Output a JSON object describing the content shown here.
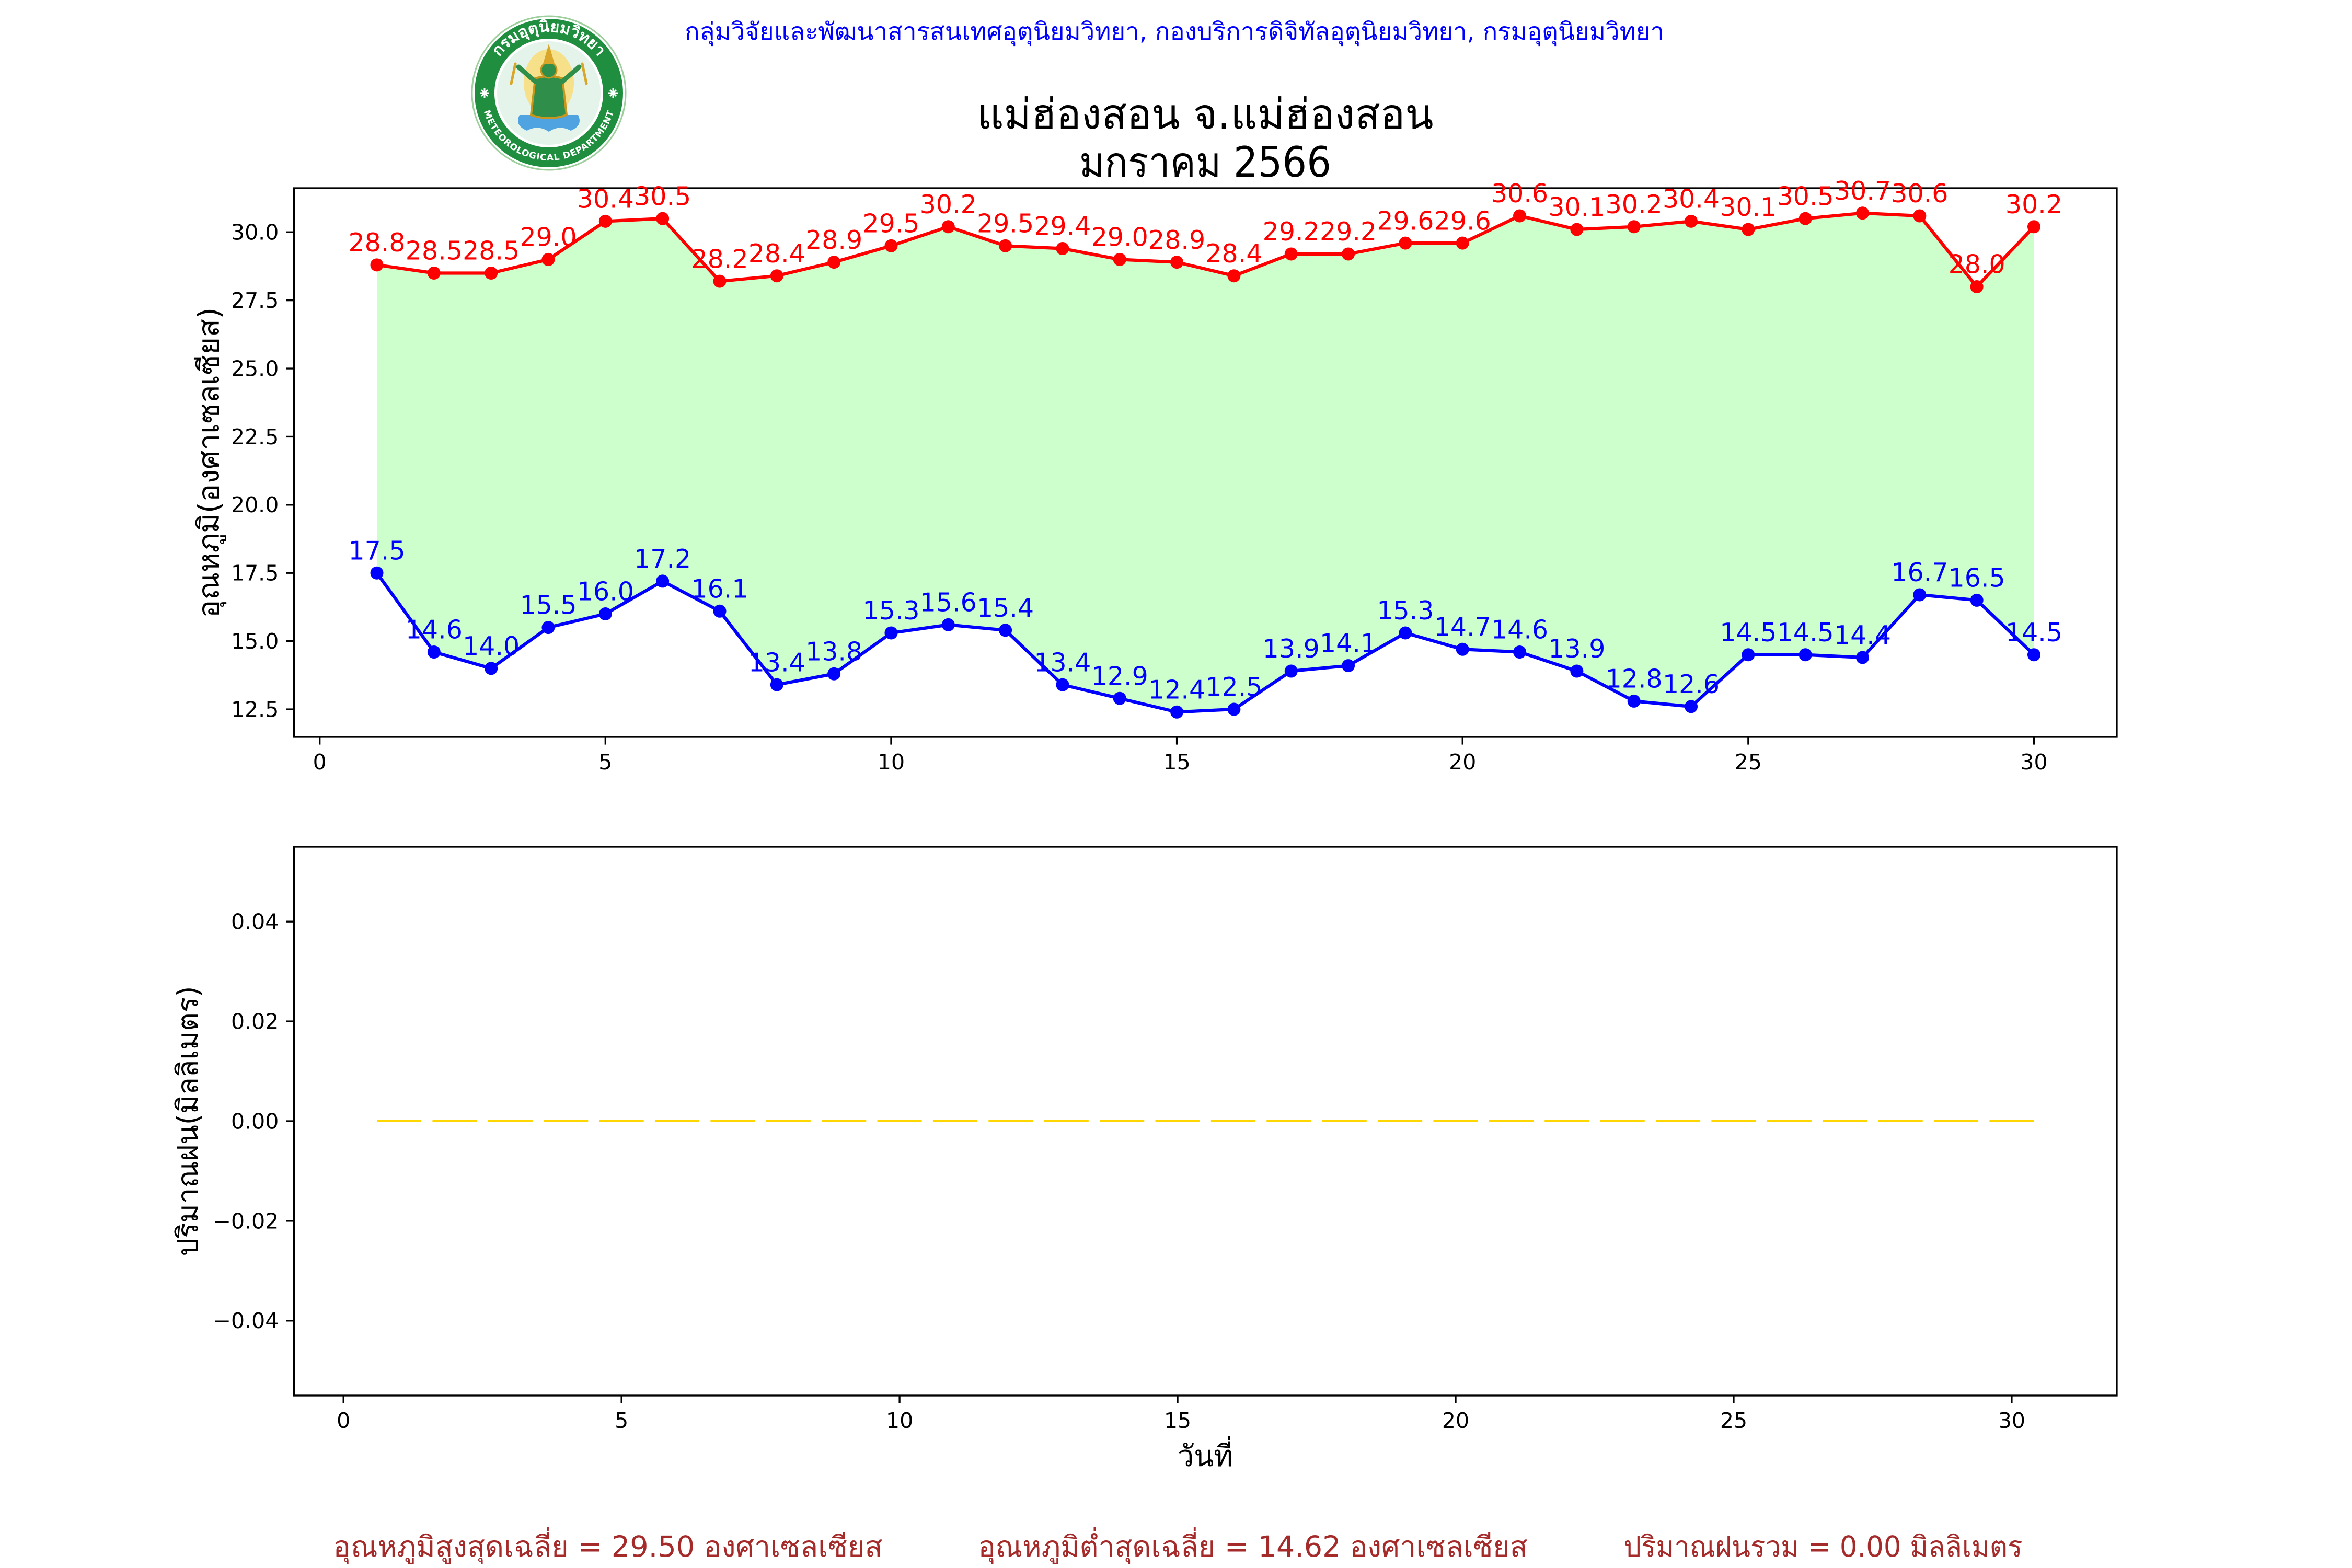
{
  "header": {
    "credit": "กลุ่มวิจัยและพัฒนาสารสนเทศอุตุนิยมวิทยา, กองบริการดิจิทัลอุตุนิยมวิทยา, กรมอุตุนิยมวิทยา",
    "color": "#0000ff"
  },
  "logo": {
    "text_thai": "กรมอุตุนิยมวิทยา",
    "text_english": "METEOROLOGICAL DEPARTMENT"
  },
  "chart_data": [
    {
      "type": "line",
      "title": "แม่ฮ่องสอน จ.แม่ฮ่องสอน",
      "subtitle": "มกราคม 2566",
      "ylabel": "อุณหภูมิ(องศาเซลเซียส)",
      "x": [
        1,
        2,
        3,
        4,
        5,
        6,
        7,
        8,
        9,
        10,
        11,
        12,
        13,
        14,
        15,
        16,
        17,
        18,
        19,
        20,
        21,
        22,
        23,
        24,
        25,
        26,
        27,
        28,
        29,
        30
      ],
      "series": [
        {
          "values": [
            28.8,
            28.5,
            28.5,
            29.0,
            30.4,
            30.5,
            28.2,
            28.4,
            28.9,
            29.5,
            30.2,
            29.5,
            29.4,
            29.0,
            28.9,
            28.4,
            29.2,
            29.2,
            29.6,
            29.6,
            30.6,
            30.1,
            30.2,
            30.4,
            30.1,
            30.5,
            30.7,
            30.6,
            28.0,
            30.2
          ],
          "color": "#ff0000",
          "marker": "circle",
          "data_labels": true
        },
        {
          "values": [
            17.5,
            14.6,
            14.0,
            15.5,
            16.0,
            17.2,
            16.1,
            13.4,
            13.8,
            15.3,
            15.6,
            15.4,
            13.4,
            12.9,
            12.4,
            12.5,
            13.9,
            14.1,
            15.3,
            14.7,
            14.6,
            13.9,
            12.8,
            12.6,
            14.5,
            14.5,
            14.4,
            16.7,
            16.5,
            14.5
          ],
          "color": "#0000ff",
          "marker": "circle",
          "data_labels": true
        }
      ],
      "fill_between_color": "#ccffcc",
      "xlim": [
        -0.45,
        31.45
      ],
      "ylim": [
        11.485,
        31.615
      ],
      "xticks": [
        0,
        5,
        10,
        15,
        20,
        25,
        30
      ],
      "xtick_labels": [
        "0",
        "5",
        "10",
        "15",
        "20",
        "25",
        "30"
      ],
      "yticks": [
        12.5,
        15.0,
        17.5,
        20.0,
        22.5,
        25.0,
        27.5,
        30.0
      ],
      "ytick_labels": [
        "12.5",
        "15.0",
        "17.5",
        "20.0",
        "22.5",
        "25.0",
        "27.5",
        "30.0"
      ],
      "grid": false,
      "legend": false
    },
    {
      "type": "bar",
      "xlabel": "วันที่",
      "ylabel": "ปริมาณฝน(มิลลิเมตร)",
      "x": [
        1,
        2,
        3,
        4,
        5,
        6,
        7,
        8,
        9,
        10,
        11,
        12,
        13,
        14,
        15,
        16,
        17,
        18,
        19,
        20,
        21,
        22,
        23,
        24,
        25,
        26,
        27,
        28,
        29,
        30
      ],
      "values": [
        0,
        0,
        0,
        0,
        0,
        0,
        0,
        0,
        0,
        0,
        0,
        0,
        0,
        0,
        0,
        0,
        0,
        0,
        0,
        0,
        0,
        0,
        0,
        0,
        0,
        0,
        0,
        0,
        0,
        0
      ],
      "color": "#ffd700",
      "xlim": [
        -0.89,
        31.89
      ],
      "ylim": [
        -0.055,
        0.055
      ],
      "xticks": [
        0,
        5,
        10,
        15,
        20,
        25,
        30
      ],
      "xtick_labels": [
        "0",
        "5",
        "10",
        "15",
        "20",
        "25",
        "30"
      ],
      "yticks": [
        -0.04,
        -0.02,
        0.0,
        0.02,
        0.04
      ],
      "ytick_labels": [
        "−0.04",
        "−0.02",
        "0.00",
        "0.02",
        "0.04"
      ],
      "grid": false,
      "legend": false
    }
  ],
  "summary": {
    "avg_max_temp": "อุณหภูมิสูงสุดเฉลี่ย = 29.50 องศาเซลเซียส",
    "avg_min_temp": "อุณหภูมิต่ำสุดเฉลี่ย = 14.62 องศาเซลเซียส",
    "total_rain": "ปริมาณฝนรวม = 0.00 มิลลิเมตร",
    "color": "#a52a2a"
  }
}
